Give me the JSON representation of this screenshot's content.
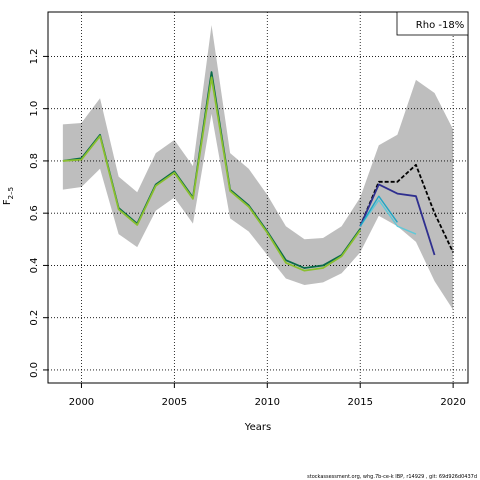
{
  "chart_data": {
    "type": "line",
    "xlabel": "Years",
    "ylabel_main": "F",
    "ylabel_sub": "2–5",
    "xlim": [
      1998.2,
      2020.8
    ],
    "ylim": [
      -0.05,
      1.37
    ],
    "xticks": [
      2000,
      2005,
      2010,
      2015,
      2020
    ],
    "yticks": [
      0.0,
      0.2,
      0.4,
      0.6,
      0.8,
      1.0,
      1.2
    ],
    "ytick_labels": [
      "0.0",
      "0.2",
      "0.4",
      "0.6",
      "0.8",
      "1.0",
      "1.2"
    ],
    "grid": true,
    "legend_text": "Rho -18%",
    "legend_position": "top-right",
    "footer": "stockassessment.org, whg.7b-ce-k IBP, r14929 , git: 69d926d0437d",
    "band": {
      "color": "#bebebe",
      "x": [
        1999,
        2000,
        2001,
        2002,
        2003,
        2004,
        2005,
        2006,
        2007,
        2008,
        2009,
        2010,
        2011,
        2012,
        2013,
        2014,
        2015,
        2016,
        2017,
        2018,
        2019,
        2020
      ],
      "low": [
        0.69,
        0.7,
        0.77,
        0.52,
        0.47,
        0.61,
        0.66,
        0.56,
        0.98,
        0.58,
        0.53,
        0.44,
        0.35,
        0.325,
        0.335,
        0.37,
        0.45,
        0.59,
        0.55,
        0.49,
        0.34,
        0.23
      ],
      "high": [
        0.94,
        0.945,
        1.04,
        0.74,
        0.68,
        0.83,
        0.88,
        0.78,
        1.32,
        0.83,
        0.77,
        0.67,
        0.55,
        0.5,
        0.505,
        0.55,
        0.66,
        0.86,
        0.9,
        1.11,
        1.06,
        0.92
      ]
    },
    "series": [
      {
        "color": "#000000",
        "width": 1.8,
        "dashed": true,
        "x": [
          2015,
          2016,
          2017,
          2018,
          2019,
          2020
        ],
        "values": [
          0.55,
          0.72,
          0.72,
          0.785,
          0.6,
          0.45
        ]
      },
      {
        "color": "#2f2f8f",
        "width": 1.8,
        "dashed": false,
        "x": [
          2015,
          2016,
          2017,
          2018,
          2019
        ],
        "values": [
          0.55,
          0.71,
          0.675,
          0.665,
          0.44
        ]
      },
      {
        "color": "#5fc8d8",
        "width": 1.4,
        "dashed": false,
        "x": [
          2015,
          2016,
          2017,
          2018
        ],
        "values": [
          0.55,
          0.65,
          0.55,
          0.52
        ]
      },
      {
        "color": "#1fa5c5",
        "width": 1.4,
        "dashed": false,
        "x": [
          2015,
          2016,
          2017
        ],
        "values": [
          0.55,
          0.665,
          0.565
        ]
      },
      {
        "color": "#0a6b4a",
        "width": 1.8,
        "dashed": false,
        "x": [
          1999,
          2000,
          2001,
          2002,
          2003,
          2004,
          2005,
          2006,
          2007,
          2008,
          2009,
          2010,
          2011,
          2012,
          2013,
          2014,
          2015
        ],
        "values": [
          0.8,
          0.81,
          0.9,
          0.62,
          0.56,
          0.71,
          0.76,
          0.66,
          1.14,
          0.69,
          0.63,
          0.53,
          0.42,
          0.39,
          0.4,
          0.44,
          0.54
        ]
      },
      {
        "color": "#8abf2f",
        "width": 1.8,
        "dashed": false,
        "x": [
          1999,
          2000,
          2001,
          2002,
          2003,
          2004,
          2005,
          2006,
          2007,
          2008,
          2009,
          2010,
          2011,
          2012,
          2013,
          2014,
          2015
        ],
        "values": [
          0.8,
          0.805,
          0.895,
          0.615,
          0.555,
          0.705,
          0.755,
          0.655,
          1.12,
          0.685,
          0.625,
          0.525,
          0.41,
          0.38,
          0.39,
          0.435,
          0.535
        ]
      }
    ]
  }
}
